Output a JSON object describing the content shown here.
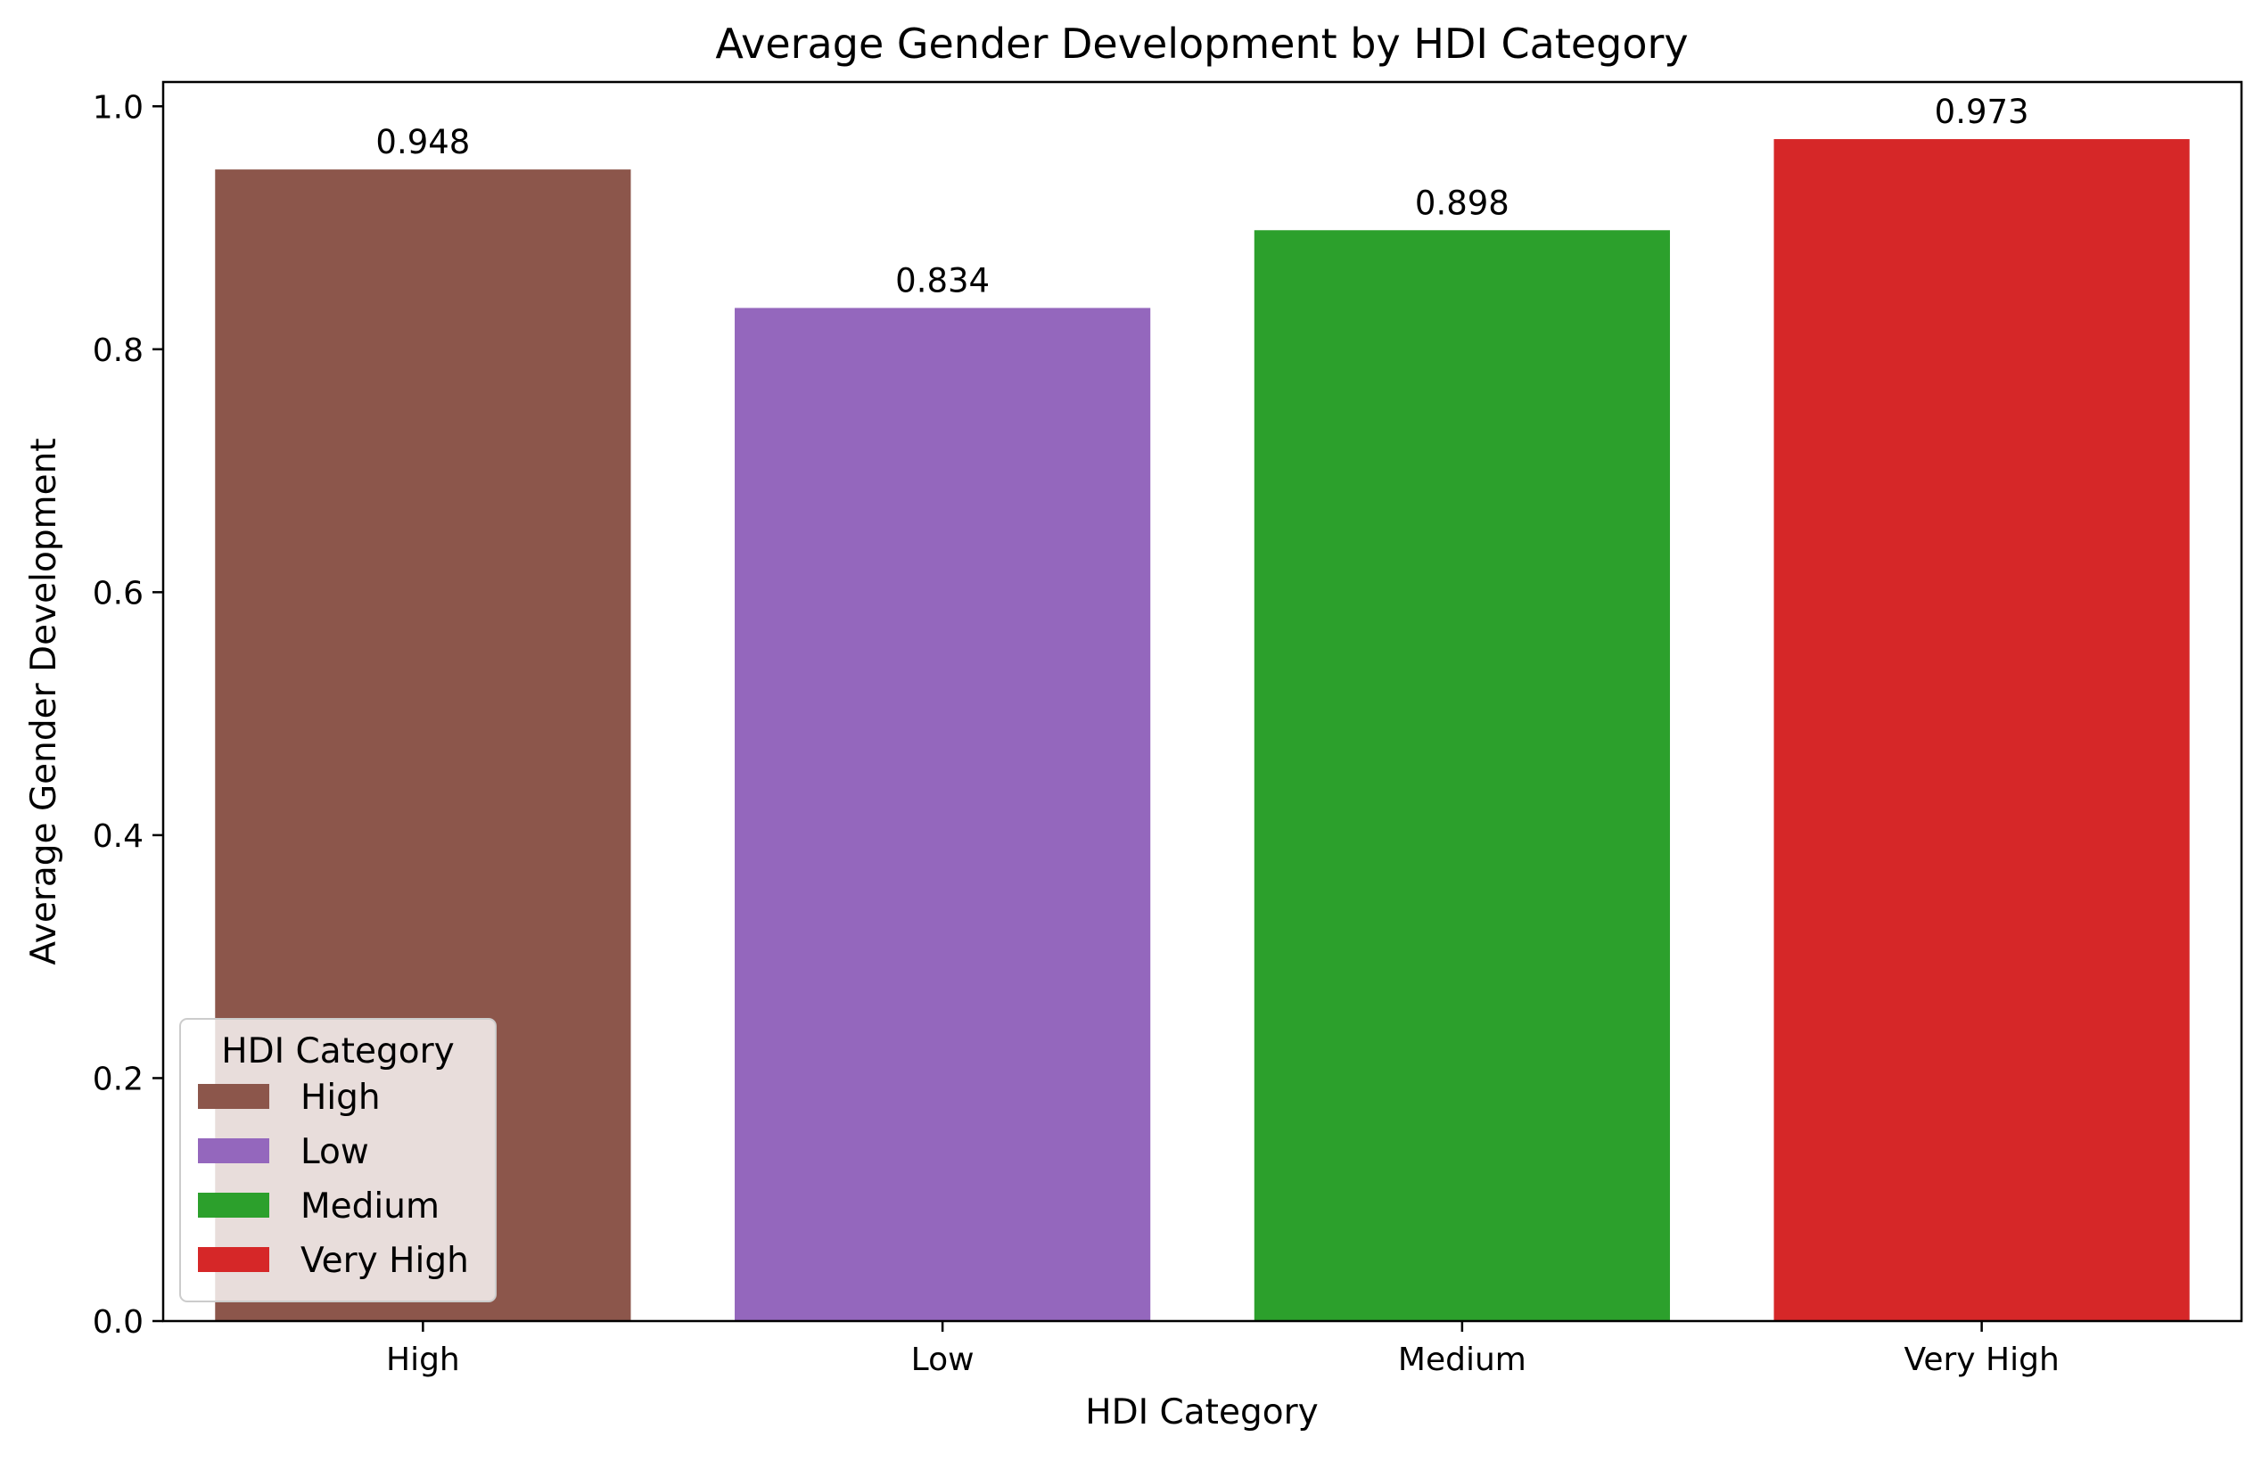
{
  "chart_data": {
    "type": "bar",
    "title": "Average Gender Development by HDI Category",
    "xlabel": "HDI Category",
    "ylabel": "Average Gender Development",
    "categories": [
      "High",
      "Low",
      "Medium",
      "Very High"
    ],
    "values": [
      0.948,
      0.834,
      0.898,
      0.973
    ],
    "value_labels": [
      "0.948",
      "0.834",
      "0.898",
      "0.973"
    ],
    "colors": [
      "#8c564b",
      "#9467bd",
      "#2ca02c",
      "#d62728"
    ],
    "ylim": [
      0,
      1.02
    ],
    "yticks": [
      0.0,
      0.2,
      0.4,
      0.6,
      0.8,
      1.0
    ],
    "ytick_labels": [
      "0.0",
      "0.2",
      "0.4",
      "0.6",
      "0.8",
      "1.0"
    ],
    "grid": false,
    "legend": {
      "title": "HDI Category",
      "placement": "lower-left",
      "entries": [
        "High",
        "Low",
        "Medium",
        "Very High"
      ]
    }
  }
}
